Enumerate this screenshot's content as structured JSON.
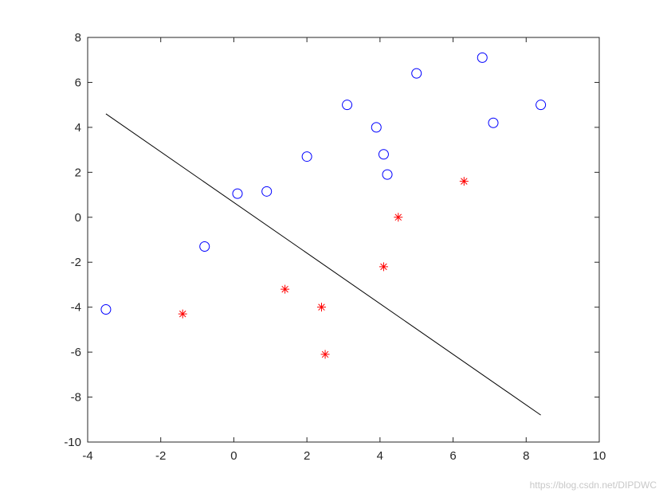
{
  "chart_data": {
    "type": "scatter",
    "title": "",
    "xlabel": "",
    "ylabel": "",
    "xlim": [
      -4,
      10
    ],
    "ylim": [
      -10,
      8
    ],
    "xticks": [
      -4,
      -2,
      0,
      2,
      4,
      6,
      8,
      10
    ],
    "yticks": [
      -10,
      -8,
      -6,
      -4,
      -2,
      0,
      2,
      4,
      6,
      8
    ],
    "grid": false,
    "legend": "none",
    "series": [
      {
        "marker": "circle",
        "color": "#0000ff",
        "points": [
          [
            -3.5,
            -4.1
          ],
          [
            -0.8,
            -1.3
          ],
          [
            0.1,
            1.05
          ],
          [
            0.9,
            1.15
          ],
          [
            2.0,
            2.7
          ],
          [
            3.1,
            5.0
          ],
          [
            3.9,
            4.0
          ],
          [
            4.1,
            2.8
          ],
          [
            4.2,
            1.9
          ],
          [
            5.0,
            6.4
          ],
          [
            6.8,
            7.1
          ],
          [
            7.1,
            4.2
          ],
          [
            8.4,
            5.0
          ]
        ]
      },
      {
        "marker": "asterisk",
        "color": "#ff0000",
        "points": [
          [
            -1.4,
            -4.3
          ],
          [
            1.4,
            -3.2
          ],
          [
            2.4,
            -4.0
          ],
          [
            2.5,
            -6.1
          ],
          [
            4.1,
            -2.2
          ],
          [
            4.5,
            0.0
          ],
          [
            6.3,
            1.6
          ]
        ]
      }
    ],
    "lines": [
      {
        "color": "#000000",
        "from": [
          -3.5,
          4.6
        ],
        "to": [
          8.4,
          -8.8
        ]
      }
    ]
  },
  "watermark": "https://blog.csdn.net/DIPDWC"
}
